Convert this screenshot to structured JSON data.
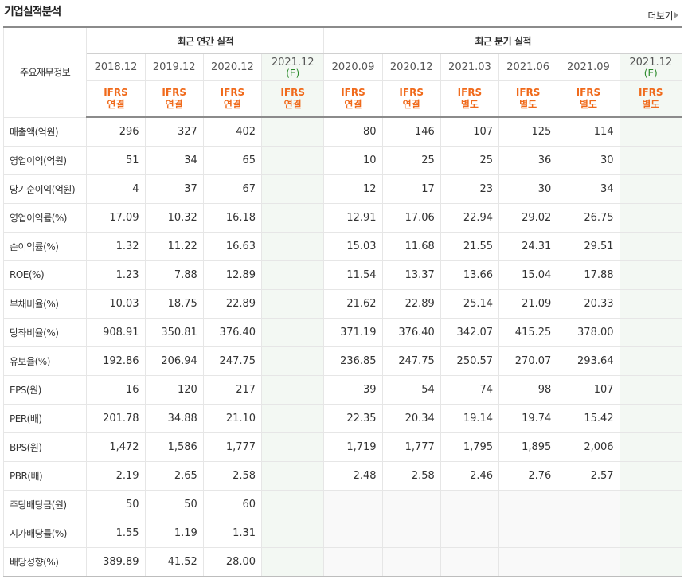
{
  "title": "기업실적분석",
  "more_label": "더보기",
  "header": {
    "corner": "주요재무정보",
    "annual_group": "최근 연간 실적",
    "quarter_group": "최근 분기 실적",
    "annual_dates": [
      "2018.12",
      "2019.12",
      "2020.12",
      "2021.12"
    ],
    "quarter_dates": [
      "2020.09",
      "2020.12",
      "2021.03",
      "2021.06",
      "2021.09",
      "2021.12"
    ],
    "estimate_mark": "(E)",
    "ifrs": [
      "IFRS",
      "IFRS",
      "IFRS",
      "IFRS",
      "IFRS",
      "IFRS",
      "IFRS",
      "IFRS",
      "IFRS",
      "IFRS"
    ],
    "basis": [
      "연결",
      "연결",
      "연결",
      "연결",
      "연결",
      "연결",
      "별도",
      "별도",
      "별도",
      "별도"
    ]
  },
  "rows": [
    {
      "label": "매출액(억원)",
      "annual": [
        "296",
        "327",
        "402",
        ""
      ],
      "quarter": [
        "80",
        "146",
        "107",
        "125",
        "114",
        ""
      ]
    },
    {
      "label": "영업이익(억원)",
      "annual": [
        "51",
        "34",
        "65",
        ""
      ],
      "quarter": [
        "10",
        "25",
        "25",
        "36",
        "30",
        ""
      ]
    },
    {
      "label": "당기순이익(억원)",
      "annual": [
        "4",
        "37",
        "67",
        ""
      ],
      "quarter": [
        "12",
        "17",
        "23",
        "30",
        "34",
        ""
      ]
    },
    {
      "label": "영업이익률(%)",
      "annual": [
        "17.09",
        "10.32",
        "16.18",
        ""
      ],
      "quarter": [
        "12.91",
        "17.06",
        "22.94",
        "29.02",
        "26.75",
        ""
      ]
    },
    {
      "label": "순이익률(%)",
      "annual": [
        "1.32",
        "11.22",
        "16.63",
        ""
      ],
      "quarter": [
        "15.03",
        "11.68",
        "21.55",
        "24.31",
        "29.51",
        ""
      ]
    },
    {
      "label": "ROE(%)",
      "annual": [
        "1.23",
        "7.88",
        "12.89",
        ""
      ],
      "quarter": [
        "11.54",
        "13.37",
        "13.66",
        "15.04",
        "17.88",
        ""
      ]
    },
    {
      "label": "부채비율(%)",
      "annual": [
        "10.03",
        "18.75",
        "22.89",
        ""
      ],
      "quarter": [
        "21.62",
        "22.89",
        "25.14",
        "21.09",
        "20.33",
        ""
      ]
    },
    {
      "label": "당좌비율(%)",
      "annual": [
        "908.91",
        "350.81",
        "376.40",
        ""
      ],
      "quarter": [
        "371.19",
        "376.40",
        "342.07",
        "415.25",
        "378.00",
        ""
      ]
    },
    {
      "label": "유보율(%)",
      "annual": [
        "192.86",
        "206.94",
        "247.75",
        ""
      ],
      "quarter": [
        "236.85",
        "247.75",
        "250.57",
        "270.07",
        "293.64",
        ""
      ]
    },
    {
      "label": "EPS(원)",
      "annual": [
        "16",
        "120",
        "217",
        ""
      ],
      "quarter": [
        "39",
        "54",
        "74",
        "98",
        "107",
        ""
      ]
    },
    {
      "label": "PER(배)",
      "annual": [
        "201.78",
        "34.88",
        "21.10",
        ""
      ],
      "quarter": [
        "22.35",
        "20.34",
        "19.14",
        "19.74",
        "15.42",
        ""
      ]
    },
    {
      "label": "BPS(원)",
      "annual": [
        "1,472",
        "1,586",
        "1,777",
        ""
      ],
      "quarter": [
        "1,719",
        "1,777",
        "1,795",
        "1,895",
        "2,006",
        ""
      ]
    },
    {
      "label": "PBR(배)",
      "annual": [
        "2.19",
        "2.65",
        "2.58",
        ""
      ],
      "quarter": [
        "2.48",
        "2.58",
        "2.46",
        "2.76",
        "2.57",
        ""
      ]
    },
    {
      "label": "주당배당금(원)",
      "annual": [
        "50",
        "50",
        "60",
        ""
      ],
      "quarter": [
        "",
        "",
        "",
        "",
        "",
        ""
      ]
    },
    {
      "label": "시가배당률(%)",
      "annual": [
        "1.55",
        "1.19",
        "1.31",
        ""
      ],
      "quarter": [
        "",
        "",
        "",
        "",
        "",
        ""
      ]
    },
    {
      "label": "배당성향(%)",
      "annual": [
        "389.89",
        "41.52",
        "28.00",
        ""
      ],
      "quarter": [
        "",
        "",
        "",
        "",
        "",
        ""
      ]
    }
  ],
  "colors": {
    "ifrs": "#f06a1b",
    "estimate_bg": "#f3f8f3",
    "estimate_text": "#2a8a2a"
  }
}
